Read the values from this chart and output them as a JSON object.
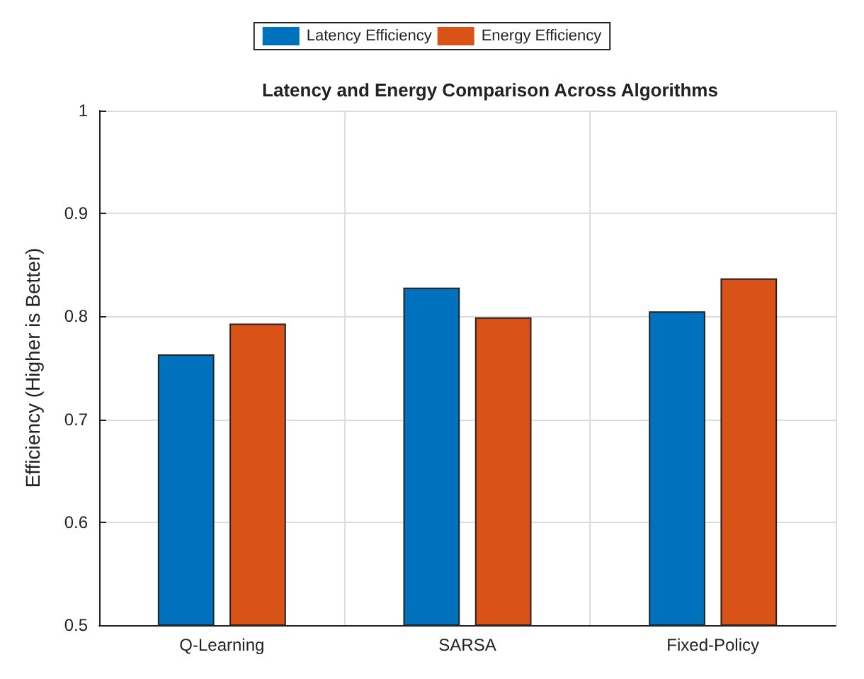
{
  "chart_data": {
    "type": "bar",
    "title": "Latency and Energy Comparison Across Algorithms",
    "ylabel": "Efficiency (Higher is Better)",
    "categories": [
      "Q-Learning",
      "SARSA",
      "Fixed-Policy"
    ],
    "series": [
      {
        "name": "Latency Efficiency",
        "color": "#0072bd",
        "values": [
          0.763,
          0.828,
          0.805
        ]
      },
      {
        "name": "Energy Efficiency",
        "color": "#d95319",
        "values": [
          0.793,
          0.799,
          0.837
        ]
      }
    ],
    "ylim": [
      0.5,
      1
    ],
    "yticks": [
      0.5,
      0.6,
      0.7,
      0.8,
      0.9,
      1
    ],
    "grid": true,
    "legend": "top"
  }
}
